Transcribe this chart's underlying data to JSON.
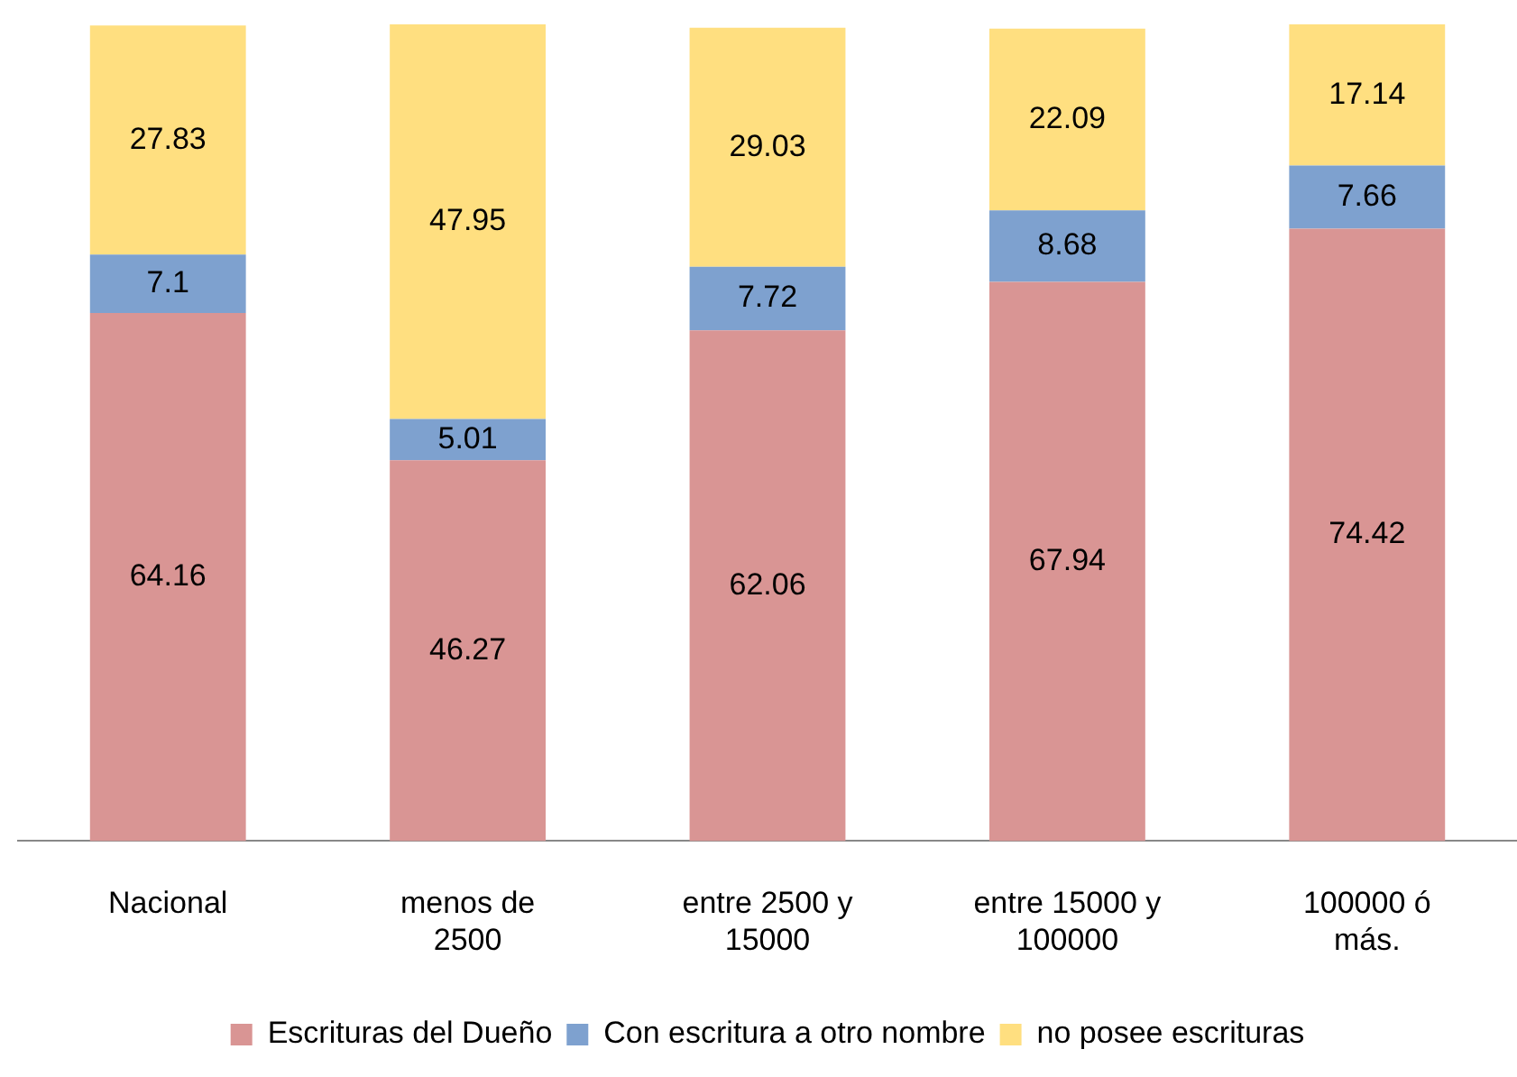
{
  "chart_data": {
    "type": "bar",
    "stacked": true,
    "categories": [
      "Nacional",
      "menos de 2500",
      "entre 2500 y 15000",
      "entre 15000 y 100000",
      "100000 ó más."
    ],
    "series": [
      {
        "name": "Escrituras del Dueño",
        "color": "#d99594",
        "values": [
          64.16,
          46.27,
          62.06,
          67.94,
          74.42
        ]
      },
      {
        "name": "Con escritura a otro nombre",
        "color": "#7ea1cf",
        "values": [
          7.1,
          5.01,
          7.72,
          8.68,
          7.66
        ]
      },
      {
        "name": "no posee escrituras",
        "color": "#ffdf80",
        "values": [
          27.83,
          47.95,
          29.03,
          22.09,
          17.14
        ]
      }
    ],
    "ylim": [
      0,
      100
    ],
    "data_labels": true,
    "legend": "bottom",
    "grid": false
  }
}
